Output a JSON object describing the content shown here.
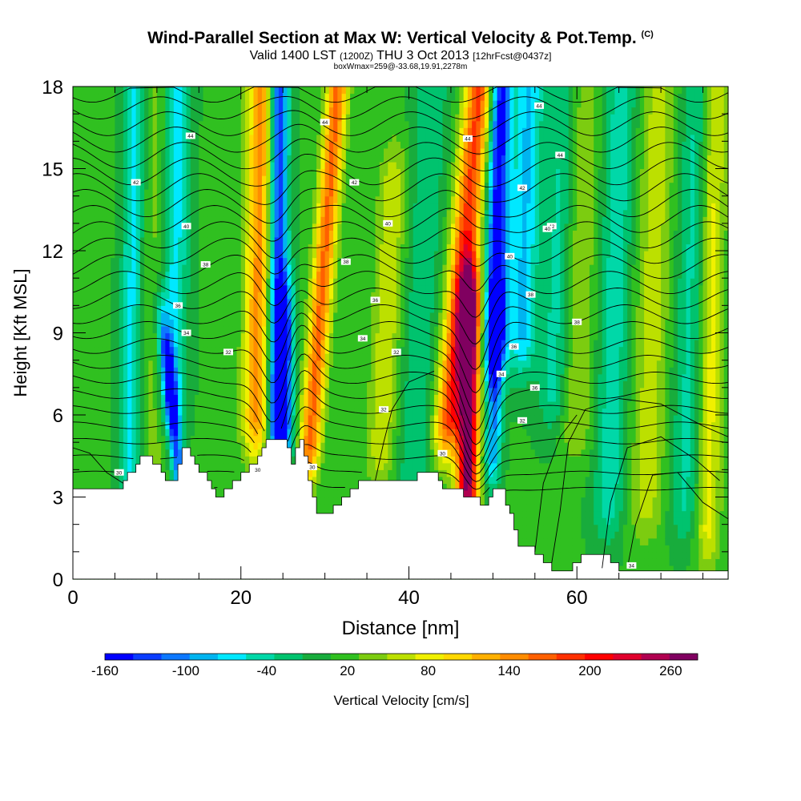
{
  "chart_data": {
    "type": "heatmap",
    "title": "Wind-Parallel Section at Max W: Vertical Velocity & Pot.Temp.",
    "copyright": "(C)",
    "subtitle_main": "Valid 1400 LST",
    "subtitle_utc": "(1200Z)",
    "subtitle_date": "THU 3 Oct 2013",
    "subtitle_fcst": "[12hrFcst@0437z]",
    "subtitle2": "boxWmax=259@-33.68,19.91,2278m",
    "xlabel": "Distance [nm]",
    "ylabel": "Height [Kft MSL]",
    "xlim": [
      0,
      78
    ],
    "ylim": [
      0,
      18
    ],
    "xticks": [
      0,
      20,
      40,
      60
    ],
    "yticks": [
      0,
      3,
      6,
      9,
      12,
      15,
      18
    ],
    "colorbar": {
      "label": "Vertical Velocity [cm/s]",
      "min": -160,
      "max": 280,
      "ticks": [
        -160,
        -100,
        -40,
        20,
        80,
        140,
        200,
        260
      ],
      "colors": [
        "#0000ff",
        "#0a3cff",
        "#0c78ff",
        "#00b4f0",
        "#00e8ff",
        "#00d8a8",
        "#00c36e",
        "#18ac3c",
        "#30c020",
        "#7ccc10",
        "#bce000",
        "#f0f000",
        "#ffd800",
        "#ffb000",
        "#ff8c00",
        "#ff6000",
        "#ff3000",
        "#ff0000",
        "#e0002c",
        "#b00050",
        "#800060"
      ]
    },
    "theta_contour_labels": [
      "44",
      "44",
      "44",
      "44",
      "44",
      "42",
      "42",
      "42",
      "42",
      "40",
      "40",
      "40",
      "40",
      "38",
      "38",
      "38",
      "38",
      "36",
      "36",
      "36",
      "36",
      "34",
      "34",
      "34",
      "34",
      "32",
      "32",
      "32",
      "32",
      "30",
      "30",
      "30",
      "30"
    ],
    "terrain": [
      [
        0,
        3.2
      ],
      [
        5,
        3.2
      ],
      [
        6,
        3.5
      ],
      [
        8,
        4.5
      ],
      [
        10,
        4.2
      ],
      [
        11,
        3.7
      ],
      [
        12,
        3.7
      ],
      [
        13,
        4.8
      ],
      [
        14,
        4.5
      ],
      [
        15,
        4.0
      ],
      [
        16,
        3.6
      ],
      [
        17,
        2.9
      ],
      [
        18,
        3.2
      ],
      [
        20,
        3.8
      ],
      [
        22,
        4.5
      ],
      [
        23,
        5.2
      ],
      [
        25,
        5.2
      ],
      [
        26,
        4.2
      ],
      [
        27,
        5.2
      ],
      [
        28,
        3.6
      ],
      [
        29,
        2.3
      ],
      [
        30,
        2.3
      ],
      [
        31,
        2.6
      ],
      [
        32,
        2.9
      ],
      [
        33,
        3.2
      ],
      [
        34,
        3.6
      ],
      [
        40,
        3.6
      ],
      [
        41,
        3.8
      ],
      [
        43,
        3.8
      ],
      [
        44,
        3.4
      ],
      [
        46,
        3.2
      ],
      [
        48,
        2.9
      ],
      [
        49,
        2.6
      ],
      [
        50,
        3.2
      ],
      [
        51,
        3.2
      ],
      [
        52,
        2.3
      ],
      [
        53,
        1.3
      ],
      [
        55,
        1.0
      ],
      [
        56,
        0.6
      ],
      [
        57,
        0.3
      ],
      [
        59,
        0.3
      ],
      [
        61,
        0.9
      ],
      [
        63,
        0.9
      ],
      [
        64,
        0.6
      ],
      [
        65,
        0.3
      ],
      [
        78,
        0.3
      ]
    ],
    "w_field_note": "mountain-wave vertical velocity (cm/s); strongest updraft ~259 near 47 nm, 6 kft"
  }
}
